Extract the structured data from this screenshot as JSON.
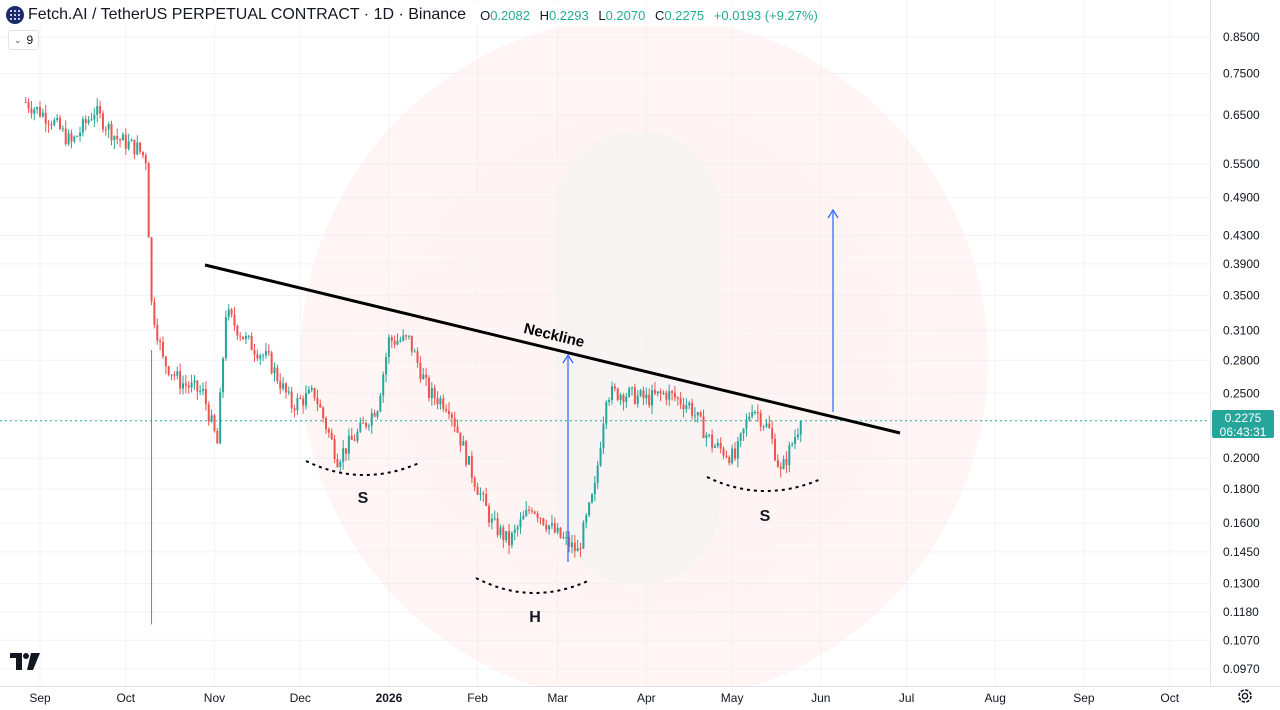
{
  "header": {
    "symbol_title": "Fetch.AI / TetherUS PERPETUAL CONTRACT · 1D · Binance",
    "open_label": "O",
    "open": "0.2082",
    "high_label": "H",
    "high": "0.2293",
    "low_label": "L",
    "low": "0.2070",
    "close_label": "C",
    "close": "0.2275",
    "change": "+0.0193 (+9.27%)"
  },
  "indicator_toggle": {
    "label": "9"
  },
  "price_axis": {
    "ticks": [
      "0.8500",
      "0.7500",
      "0.6500",
      "0.5500",
      "0.4900",
      "0.4300",
      "0.3900",
      "0.3500",
      "0.3100",
      "0.2800",
      "0.2500",
      "0.2000",
      "0.1800",
      "0.1600",
      "0.1450",
      "0.1300",
      "0.1180",
      "0.1070",
      "0.0970"
    ],
    "last_price": "0.2275",
    "countdown": "06:43:31"
  },
  "time_axis": {
    "labels": [
      "Sep",
      "Oct",
      "Nov",
      "Dec",
      "2026",
      "Feb",
      "Mar",
      "Apr",
      "May",
      "Jun",
      "Jul",
      "Aug",
      "Sep",
      "Oct"
    ]
  },
  "annotations": {
    "neckline": "Neckline",
    "left_shoulder": "S",
    "head": "H",
    "right_shoulder": "S"
  },
  "colors": {
    "up": "#26a69a",
    "down": "#ef5350",
    "neckline": "#000000",
    "projection_arrow": "#2962ff",
    "last_price_line": "#26a69a"
  },
  "chart_data": {
    "type": "candlestick",
    "scale": "log",
    "ylim": [
      0.094,
      0.92
    ],
    "y_ticks": [
      0.85,
      0.75,
      0.65,
      0.55,
      0.49,
      0.43,
      0.39,
      0.35,
      0.31,
      0.28,
      0.25,
      0.2,
      0.18,
      0.16,
      0.145,
      0.13,
      0.118,
      0.107,
      0.097
    ],
    "x_ticks": [
      "Sep",
      "Oct",
      "Nov",
      "Dec",
      "2026",
      "Feb",
      "Mar",
      "Apr",
      "May",
      "Jun",
      "Jul",
      "Aug",
      "Sep",
      "Oct"
    ],
    "last_price": 0.2275,
    "price_path": [
      [
        "Aug 27",
        0.68
      ],
      [
        "Sep 5",
        0.64
      ],
      [
        "Sep 12",
        0.59
      ],
      [
        "Sep 20",
        0.66
      ],
      [
        "Sep 28",
        0.6
      ],
      [
        "Oct 5",
        0.58
      ],
      [
        "Oct 8",
        0.56
      ],
      [
        "Oct 10",
        0.34
      ],
      [
        "Oct 14",
        0.28
      ],
      [
        "Oct 20",
        0.26
      ],
      [
        "Oct 28",
        0.25
      ],
      [
        "Nov 2",
        0.21
      ],
      [
        "Nov 5",
        0.33
      ],
      [
        "Nov 12",
        0.3
      ],
      [
        "Nov 20",
        0.28
      ],
      [
        "Nov 28",
        0.24
      ],
      [
        "Dec 6",
        0.25
      ],
      [
        "Dec 14",
        0.2
      ],
      [
        "Dec 22",
        0.22
      ],
      [
        "Dec 28",
        0.24
      ],
      [
        "Jan 1",
        0.3
      ],
      [
        "Jan 8",
        0.3
      ],
      [
        "Jan 15",
        0.25
      ],
      [
        "Jan 22",
        0.24
      ],
      [
        "Jan 30",
        0.19
      ],
      [
        "Feb 6",
        0.16
      ],
      [
        "Feb 12",
        0.15
      ],
      [
        "Feb 20",
        0.17
      ],
      [
        "Feb 28",
        0.155
      ],
      [
        "Mar 8",
        0.145
      ],
      [
        "Mar 14",
        0.18
      ],
      [
        "Mar 18",
        0.25
      ],
      [
        "Mar 24",
        0.25
      ],
      [
        "Apr 1",
        0.245
      ],
      [
        "Apr 8",
        0.25
      ],
      [
        "Apr 16",
        0.24
      ],
      [
        "Apr 24",
        0.21
      ],
      [
        "May 2",
        0.2
      ],
      [
        "May 8",
        0.24
      ],
      [
        "May 14",
        0.22
      ],
      [
        "May 18",
        0.19
      ],
      [
        "May 25",
        0.2275
      ]
    ]
  }
}
